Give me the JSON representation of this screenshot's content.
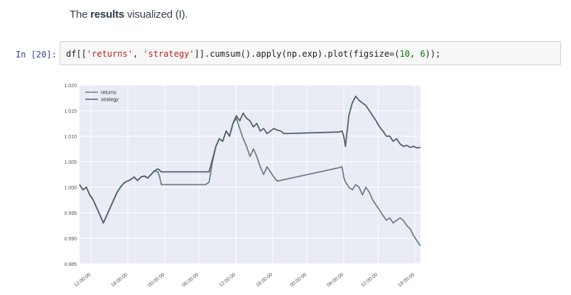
{
  "heading": {
    "prefix": "The ",
    "bold": "results",
    "suffix": " visualized (I)."
  },
  "cell": {
    "prompt": "In [20]:",
    "code": {
      "t1": "df[[",
      "s1": "'returns'",
      "t2": ", ",
      "s2": "'strategy'",
      "t3": "]].cumsum().apply(np.exp).plot(figsize=(",
      "n1": "10",
      "t4": ", ",
      "n2": "6",
      "t5": "));"
    }
  },
  "chart_data": {
    "type": "line",
    "title": "",
    "xlabel": "",
    "ylabel": "",
    "ylim": [
      0.985,
      1.02
    ],
    "yticks": [
      0.985,
      0.99,
      0.995,
      1.0,
      1.005,
      1.01,
      1.015,
      1.02
    ],
    "ytick_labels": [
      "0.985",
      "0.990",
      "0.995",
      "1.000",
      "1.005",
      "1.010",
      "1.015",
      "1.020"
    ],
    "xlim": [
      0,
      100
    ],
    "xticks": [
      4,
      17,
      30,
      42,
      55,
      68,
      80,
      93,
      107
    ],
    "xtick_labels": [
      "12:00:00",
      "18:00:00",
      "00:00:00",
      "06:00:00",
      "12:00:00",
      "18:00:00",
      "00:00:00",
      "06:00:00",
      "12:00:00",
      "18:00:00"
    ],
    "xticks_all": [
      4,
      17,
      30,
      42,
      55,
      68,
      80,
      93,
      105,
      118
    ],
    "grid": true,
    "legend": "top-left",
    "background": "#e9ebf5",
    "series": [
      {
        "name": "returns",
        "color": "#6d7f8c",
        "points": [
          [
            0,
            1.0005
          ],
          [
            1,
            0.9995
          ],
          [
            2,
            1.0
          ],
          [
            3,
            0.9985
          ],
          [
            4,
            0.9975
          ],
          [
            5,
            0.996
          ],
          [
            6,
            0.9945
          ],
          [
            7,
            0.993
          ],
          [
            8,
            0.9945
          ],
          [
            9,
            0.996
          ],
          [
            10,
            0.9975
          ],
          [
            11,
            0.999
          ],
          [
            12,
            1.0
          ],
          [
            13,
            1.0008
          ],
          [
            14,
            1.0012
          ],
          [
            15,
            1.0015
          ],
          [
            16,
            1.002
          ],
          [
            17,
            1.0013
          ],
          [
            18,
            1.002
          ],
          [
            19,
            1.0022
          ],
          [
            20,
            1.0018
          ],
          [
            21,
            1.0025
          ],
          [
            22,
            1.0032
          ],
          [
            23,
            1.003
          ],
          [
            23.5,
            1.002
          ],
          [
            24,
            1.0005
          ],
          [
            37,
            1.0005
          ],
          [
            38,
            1.001
          ],
          [
            39,
            1.005
          ],
          [
            40,
            1.008
          ],
          [
            41,
            1.0095
          ],
          [
            42,
            1.009
          ],
          [
            43,
            1.011
          ],
          [
            44,
            1.01
          ],
          [
            45,
            1.0125
          ],
          [
            46,
            1.0135
          ],
          [
            47,
            1.0115
          ],
          [
            48,
            1.0095
          ],
          [
            49,
            1.008
          ],
          [
            50,
            1.006
          ],
          [
            51,
            1.0075
          ],
          [
            52,
            1.006
          ],
          [
            53,
            1.004
          ],
          [
            54,
            1.0025
          ],
          [
            55,
            1.004
          ],
          [
            56,
            1.003
          ],
          [
            57,
            1.002
          ],
          [
            58,
            1.0012
          ],
          [
            76,
            1.0038
          ],
          [
            77,
            1.004
          ],
          [
            77.5,
            1.002
          ],
          [
            78,
            1.001
          ],
          [
            79,
            1.0
          ],
          [
            80,
            0.9995
          ],
          [
            81,
            1.0005
          ],
          [
            82,
            1.0
          ],
          [
            83,
            0.9985
          ],
          [
            84,
            1.0
          ],
          [
            85,
            0.999
          ],
          [
            86,
            0.9975
          ],
          [
            87,
            0.9965
          ],
          [
            88,
            0.9955
          ],
          [
            89,
            0.9945
          ],
          [
            90,
            0.9935
          ],
          [
            91,
            0.994
          ],
          [
            92,
            0.993
          ],
          [
            93,
            0.9935
          ],
          [
            94,
            0.994
          ],
          [
            95,
            0.9935
          ],
          [
            96,
            0.9925
          ],
          [
            97,
            0.9918
          ],
          [
            98,
            0.9905
          ],
          [
            99,
            0.9895
          ],
          [
            100,
            0.9885
          ]
        ]
      },
      {
        "name": "strategy",
        "color": "#4f6270",
        "points": [
          [
            0,
            1.0005
          ],
          [
            1,
            0.9995
          ],
          [
            2,
            1.0
          ],
          [
            3,
            0.9985
          ],
          [
            4,
            0.9975
          ],
          [
            5,
            0.996
          ],
          [
            6,
            0.9945
          ],
          [
            7,
            0.993
          ],
          [
            8,
            0.9945
          ],
          [
            9,
            0.996
          ],
          [
            10,
            0.9975
          ],
          [
            11,
            0.999
          ],
          [
            12,
            1.0
          ],
          [
            13,
            1.0008
          ],
          [
            14,
            1.0012
          ],
          [
            15,
            1.0015
          ],
          [
            16,
            1.002
          ],
          [
            17,
            1.0013
          ],
          [
            18,
            1.002
          ],
          [
            19,
            1.0022
          ],
          [
            20,
            1.0018
          ],
          [
            21,
            1.0025
          ],
          [
            22,
            1.0032
          ],
          [
            23,
            1.0036
          ],
          [
            24,
            1.003
          ],
          [
            37,
            1.003
          ],
          [
            38,
            1.003
          ],
          [
            39,
            1.0055
          ],
          [
            40,
            1.008
          ],
          [
            41,
            1.0095
          ],
          [
            42,
            1.009
          ],
          [
            43,
            1.011
          ],
          [
            44,
            1.01
          ],
          [
            45,
            1.0125
          ],
          [
            46,
            1.014
          ],
          [
            47,
            1.013
          ],
          [
            48,
            1.0145
          ],
          [
            49,
            1.0135
          ],
          [
            50,
            1.013
          ],
          [
            51,
            1.0118
          ],
          [
            52,
            1.0125
          ],
          [
            53,
            1.011
          ],
          [
            54,
            1.0115
          ],
          [
            55,
            1.0105
          ],
          [
            56,
            1.011
          ],
          [
            57,
            1.0115
          ],
          [
            58,
            1.0112
          ],
          [
            59,
            1.011
          ],
          [
            60,
            1.0105
          ],
          [
            76,
            1.0108
          ],
          [
            77,
            1.011
          ],
          [
            77.5,
            1.01
          ],
          [
            78,
            1.008
          ],
          [
            79,
            1.014
          ],
          [
            80,
            1.0165
          ],
          [
            81,
            1.0178
          ],
          [
            82,
            1.017
          ],
          [
            83,
            1.0165
          ],
          [
            84,
            1.016
          ],
          [
            85,
            1.015
          ],
          [
            86,
            1.014
          ],
          [
            87,
            1.013
          ],
          [
            88,
            1.0118
          ],
          [
            89,
            1.011
          ],
          [
            90,
            1.01
          ],
          [
            91,
            1.01
          ],
          [
            92,
            1.009
          ],
          [
            93,
            1.0095
          ],
          [
            94,
            1.0085
          ],
          [
            95,
            1.008
          ],
          [
            96,
            1.0082
          ],
          [
            97,
            1.0078
          ],
          [
            98,
            1.008
          ],
          [
            99,
            1.0077
          ],
          [
            100,
            1.0078
          ]
        ]
      }
    ]
  }
}
